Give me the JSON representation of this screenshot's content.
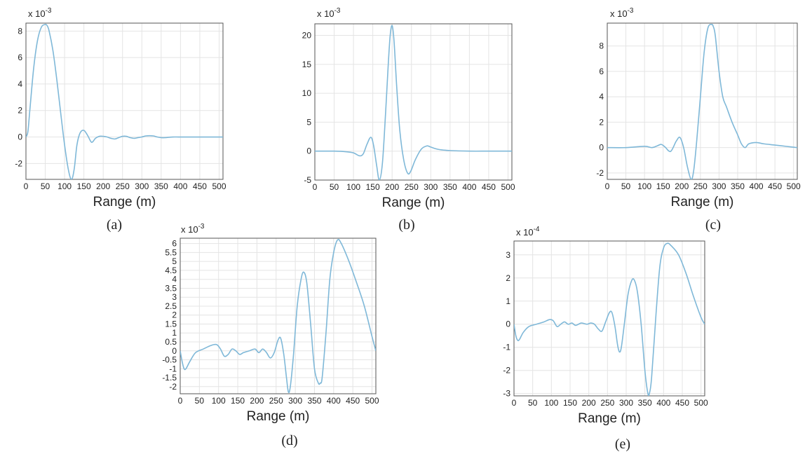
{
  "figure_labels": [
    "(a)",
    "(b)",
    "(c)",
    "(d)",
    "(e)"
  ],
  "chart_data": [
    {
      "type": "line",
      "panel_label": "(a)",
      "title": "",
      "xlabel": "Range (m)",
      "ylabel": "",
      "y_multiplier": "x 10",
      "y_exponent": "-3",
      "xlim": [
        0,
        510
      ],
      "ylim": [
        -3.2,
        8.6
      ],
      "xticks": [
        0,
        50,
        100,
        150,
        200,
        250,
        300,
        350,
        400,
        450,
        500
      ],
      "yticks": [
        -2,
        0,
        2,
        4,
        6,
        8
      ],
      "grid": true,
      "series": [
        {
          "color": "#7fb8d8",
          "x": [
            0,
            5,
            10,
            20,
            30,
            40,
            50,
            55,
            60,
            70,
            80,
            90,
            100,
            110,
            118,
            125,
            132,
            140,
            150,
            160,
            170,
            180,
            190,
            200,
            210,
            220,
            230,
            240,
            250,
            260,
            270,
            280,
            290,
            300,
            310,
            320,
            330,
            340,
            350,
            360,
            370,
            380,
            400,
            450,
            510
          ],
          "values": [
            0,
            0.4,
            2.0,
            5.2,
            7.3,
            8.3,
            8.5,
            8.4,
            8.0,
            6.5,
            4.3,
            1.8,
            -0.6,
            -2.5,
            -3.2,
            -2.4,
            -0.6,
            0.3,
            0.5,
            0.1,
            -0.4,
            -0.1,
            0.05,
            0.05,
            0.0,
            -0.1,
            -0.15,
            -0.05,
            0.05,
            0.05,
            -0.05,
            -0.1,
            -0.05,
            0.0,
            0.08,
            0.1,
            0.08,
            0.0,
            -0.05,
            -0.05,
            -0.02,
            0.0,
            0.0,
            0.0,
            0.0
          ]
        }
      ]
    },
    {
      "type": "line",
      "panel_label": "(b)",
      "title": "",
      "xlabel": "Range (m)",
      "ylabel": "",
      "y_multiplier": "x 10",
      "y_exponent": "-3",
      "xlim": [
        0,
        510
      ],
      "ylim": [
        -5,
        22
      ],
      "xticks": [
        0,
        50,
        100,
        150,
        200,
        250,
        300,
        350,
        400,
        450,
        500
      ],
      "yticks": [
        -5,
        0,
        5,
        10,
        15,
        20
      ],
      "grid": true,
      "series": [
        {
          "color": "#7fb8d8",
          "x": [
            0,
            50,
            80,
            100,
            115,
            125,
            135,
            145,
            152,
            160,
            167,
            175,
            183,
            190,
            195,
            200,
            205,
            212,
            220,
            230,
            240,
            248,
            260,
            275,
            290,
            300,
            320,
            350,
            400,
            450,
            510
          ],
          "values": [
            0,
            0,
            -0.1,
            -0.3,
            -0.8,
            -0.5,
            1.2,
            2.4,
            1.0,
            -2.5,
            -5.0,
            -2.0,
            6.5,
            15.0,
            20.0,
            21.7,
            19.0,
            11.0,
            3.5,
            -1.5,
            -3.8,
            -3.5,
            -1.5,
            0.3,
            0.9,
            0.7,
            0.3,
            0.1,
            0,
            0,
            0
          ]
        }
      ]
    },
    {
      "type": "line",
      "panel_label": "(c)",
      "title": "",
      "xlabel": "Range (m)",
      "ylabel": "",
      "y_multiplier": "x 10",
      "y_exponent": "-3",
      "xlim": [
        0,
        510
      ],
      "ylim": [
        -2.5,
        9.8
      ],
      "xticks": [
        0,
        50,
        100,
        150,
        200,
        250,
        300,
        350,
        400,
        450,
        500
      ],
      "yticks": [
        -2,
        0,
        2,
        4,
        6,
        8
      ],
      "grid": true,
      "series": [
        {
          "color": "#7fb8d8",
          "x": [
            0,
            50,
            100,
            120,
            135,
            145,
            155,
            170,
            185,
            195,
            205,
            215,
            225,
            232,
            240,
            250,
            260,
            270,
            280,
            285,
            290,
            300,
            310,
            320,
            335,
            350,
            360,
            370,
            380,
            400,
            420,
            450,
            480,
            510
          ],
          "values": [
            0,
            0,
            0.1,
            0.0,
            0.15,
            0.25,
            0.05,
            -0.3,
            0.5,
            0.8,
            0.0,
            -1.5,
            -2.5,
            -1.8,
            0.5,
            4.0,
            7.5,
            9.4,
            9.7,
            9.5,
            8.8,
            6.0,
            4.0,
            3.2,
            2.0,
            1.0,
            0.3,
            0.0,
            0.3,
            0.4,
            0.3,
            0.2,
            0.1,
            0.0
          ]
        }
      ]
    },
    {
      "type": "line",
      "panel_label": "(d)",
      "title": "",
      "xlabel": "Range (m)",
      "ylabel": "",
      "y_multiplier": "x 10",
      "y_exponent": "-3",
      "xlim": [
        0,
        510
      ],
      "ylim": [
        -2.4,
        6.3
      ],
      "xticks": [
        0,
        50,
        100,
        150,
        200,
        250,
        300,
        350,
        400,
        450,
        500
      ],
      "yticks": [
        -2,
        -1.5,
        -1,
        -0.5,
        0,
        0.5,
        1,
        1.5,
        2,
        2.5,
        3,
        3.5,
        4,
        4.5,
        5,
        5.5,
        6
      ],
      "grid": true,
      "series": [
        {
          "color": "#7fb8d8",
          "x": [
            0,
            5,
            10,
            15,
            25,
            40,
            60,
            80,
            95,
            105,
            115,
            125,
            135,
            145,
            155,
            165,
            180,
            195,
            205,
            215,
            225,
            235,
            245,
            255,
            262,
            270,
            277,
            282,
            287,
            295,
            305,
            315,
            322,
            330,
            340,
            350,
            360,
            365,
            370,
            380,
            390,
            400,
            410,
            420,
            440,
            460,
            480,
            500,
            510
          ],
          "values": [
            0,
            -0.6,
            -1.0,
            -1.0,
            -0.6,
            -0.1,
            0.1,
            0.3,
            0.35,
            0.1,
            -0.3,
            -0.2,
            0.1,
            0.0,
            -0.2,
            -0.1,
            0.0,
            0.1,
            -0.1,
            0.1,
            -0.1,
            -0.4,
            -0.1,
            0.6,
            0.7,
            -0.2,
            -1.5,
            -2.3,
            -2.0,
            -0.3,
            2.5,
            4.0,
            4.4,
            3.8,
            1.5,
            -1.0,
            -1.8,
            -1.8,
            -1.5,
            1.0,
            4.0,
            5.5,
            6.2,
            6.0,
            5.0,
            3.8,
            2.5,
            0.8,
            0
          ]
        }
      ]
    },
    {
      "type": "line",
      "panel_label": "(e)",
      "title": "",
      "xlabel": "Range (m)",
      "ylabel": "",
      "y_multiplier": "x 10",
      "y_exponent": "-4",
      "xlim": [
        0,
        510
      ],
      "ylim": [
        -3.1,
        3.6
      ],
      "xticks": [
        0,
        50,
        100,
        150,
        200,
        250,
        300,
        350,
        400,
        450,
        500
      ],
      "yticks": [
        -3,
        -2,
        -1,
        0,
        1,
        2,
        3
      ],
      "grid": true,
      "series": [
        {
          "color": "#7fb8d8",
          "x": [
            0,
            5,
            10,
            15,
            25,
            40,
            60,
            80,
            95,
            105,
            115,
            125,
            135,
            145,
            155,
            165,
            180,
            195,
            205,
            215,
            225,
            235,
            245,
            255,
            262,
            270,
            277,
            282,
            287,
            295,
            305,
            315,
            322,
            330,
            340,
            350,
            358,
            362,
            368,
            380,
            390,
            400,
            410,
            420,
            440,
            460,
            480,
            500,
            510
          ],
          "values": [
            0,
            -0.5,
            -0.7,
            -0.65,
            -0.35,
            -0.1,
            0.0,
            0.1,
            0.2,
            0.15,
            -0.1,
            0.0,
            0.1,
            0.0,
            0.05,
            -0.05,
            0.05,
            0.0,
            0.05,
            0.0,
            -0.2,
            -0.3,
            0.1,
            0.5,
            0.5,
            -0.1,
            -0.9,
            -1.2,
            -1.0,
            0.0,
            1.3,
            1.9,
            1.9,
            1.4,
            0.0,
            -2.0,
            -3.0,
            -3.0,
            -2.3,
            0.5,
            2.5,
            3.3,
            3.5,
            3.4,
            3.0,
            2.2,
            1.2,
            0.3,
            0
          ]
        }
      ]
    }
  ]
}
